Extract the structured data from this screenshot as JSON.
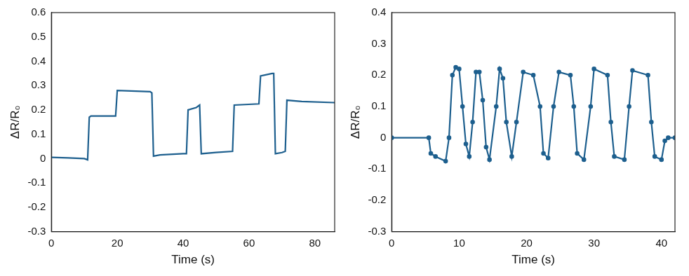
{
  "chart_data": [
    {
      "type": "line",
      "x_label": "Time (s)",
      "y_label": "ΔR/R₀",
      "xlim": [
        0,
        86
      ],
      "xticks": [
        0,
        20,
        40,
        60,
        80
      ],
      "ylim": [
        -0.3,
        0.6
      ],
      "yticks": [
        -0.3,
        -0.2,
        -0.1,
        0,
        0.1,
        0.2,
        0.3,
        0.4,
        0.5,
        0.6
      ],
      "grid": false,
      "color": "#1d5f8e",
      "marker": "none",
      "line_style": "solid",
      "x": [
        0,
        5,
        10,
        11,
        11.5,
        12,
        19.5,
        20,
        30,
        30.5,
        31,
        33,
        40,
        41,
        41.5,
        44,
        45,
        45.5,
        50,
        55,
        55.5,
        63,
        63.5,
        67,
        67.5,
        68,
        70,
        71,
        71.5,
        76,
        86
      ],
      "values": [
        0.005,
        0.003,
        0,
        -0.005,
        0.17,
        0.175,
        0.175,
        0.28,
        0.275,
        0.27,
        0.01,
        0.015,
        0.02,
        0.02,
        0.2,
        0.21,
        0.22,
        0.02,
        0.025,
        0.03,
        0.22,
        0.225,
        0.34,
        0.35,
        0.35,
        0.02,
        0.025,
        0.03,
        0.24,
        0.235,
        0.23
      ]
    },
    {
      "type": "line",
      "x_label": "Time (s)",
      "y_label": "ΔR/R₀",
      "xlim": [
        0,
        42
      ],
      "xticks": [
        0,
        10,
        20,
        30,
        40
      ],
      "ylim": [
        -0.3,
        0.4
      ],
      "yticks": [
        -0.3,
        -0.2,
        -0.1,
        0,
        0.1,
        0.2,
        0.3,
        0.4
      ],
      "grid": false,
      "color": "#1d5f8e",
      "marker": "circle",
      "line_style": "solid",
      "x": [
        0,
        5.5,
        5.8,
        6.5,
        8,
        8.5,
        9,
        9.5,
        10,
        10.5,
        11,
        11.5,
        12,
        12.5,
        13,
        13.5,
        14,
        14.5,
        15.5,
        16,
        16.5,
        17,
        17.8,
        18.5,
        19.5,
        21,
        22,
        22.5,
        23.2,
        24,
        24.8,
        26.5,
        27,
        27.5,
        28.5,
        29.5,
        30,
        32,
        32.5,
        33,
        34.5,
        35.2,
        35.7,
        38,
        38.5,
        39,
        40,
        40.5,
        41,
        42
      ],
      "values": [
        0,
        0,
        -0.05,
        -0.06,
        -0.075,
        0,
        0.2,
        0.225,
        0.22,
        0.1,
        -0.02,
        -0.06,
        0.05,
        0.21,
        0.21,
        0.12,
        -0.03,
        -0.07,
        0.1,
        0.22,
        0.19,
        0.05,
        -0.06,
        0.05,
        0.21,
        0.2,
        0.1,
        -0.05,
        -0.065,
        0.1,
        0.21,
        0.2,
        0.1,
        -0.05,
        -0.07,
        0.1,
        0.22,
        0.2,
        0.05,
        -0.06,
        -0.07,
        0.1,
        0.215,
        0.2,
        0.05,
        -0.06,
        -0.07,
        -0.01,
        0,
        0
      ]
    }
  ]
}
